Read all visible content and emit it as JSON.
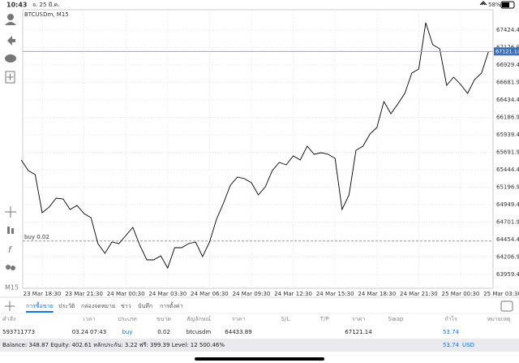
{
  "status_bar": {
    "time": "10:43",
    "date": "จ. 25 มี.ค.",
    "battery": "58%"
  },
  "chart_data": {
    "type": "line",
    "title": "BTCUSDm, M15",
    "color": "#000000",
    "grid": true,
    "categories": [
      null,
      null,
      null,
      "23 Mar 18:30",
      null,
      null,
      null,
      null,
      null,
      "23 Mar 21:30",
      null,
      null,
      null,
      null,
      null,
      "24 Mar 00:30",
      null,
      null,
      null,
      null,
      null,
      "24 Mar 03:30",
      null,
      null,
      null,
      null,
      null,
      "24 Mar 06:30",
      null,
      null,
      null,
      null,
      null,
      "24 Mar 09:30",
      null,
      null,
      null,
      null,
      null,
      "24 Mar 12:30",
      null,
      null,
      null,
      null,
      null,
      "24 Mar 15:30",
      null,
      null,
      null,
      null,
      null,
      "24 Mar 18:30",
      null,
      null,
      null,
      null,
      null,
      "24 Mar 21:30",
      null,
      null,
      null,
      null,
      null,
      "25 Mar 00:30",
      null,
      null,
      null,
      null,
      null,
      "25 Mar 03:30"
    ],
    "values": [
      65582.6,
      65433.0,
      65375.4,
      64834.4,
      64915.0,
      65041.6,
      65030.1,
      64880.5,
      64938.0,
      64822.9,
      64765.4,
      64397.0,
      64258.9,
      64420.0,
      64397.0,
      64512.1,
      64627.2,
      64374.0,
      64166.8,
      64166.8,
      64224.3,
      64051.7,
      64339.5,
      64339.5,
      64397.0,
      64420.0,
      64212.8,
      64420.0,
      64742.3,
      64972.6,
      65225.8,
      65340.9,
      65317.9,
      65260.3,
      65087.7,
      65202.8,
      65433.0,
      65548.1,
      65513.6,
      65640.2,
      65582.6,
      65778.3,
      65663.2,
      65686.2,
      65663.2,
      65605.7,
      64880.5,
      65087.7,
      65720.8,
      65778.3,
      65951.0,
      66043.1,
      66411.4,
      66238.8,
      66376.9,
      66526.5,
      66814.3,
      66871.9,
      67528.0,
      67217.2,
      67159.6,
      66641.7,
      66756.8,
      66653.2,
      66526.5,
      66722.2,
      66814.3,
      67121.1,
      null,
      null
    ],
    "ylim": [
      63763.8,
      67712.2
    ],
    "yticks": [
      {
        "value": 63959.4,
        "label": "63959.40"
      },
      {
        "value": 64206.9,
        "label": "64206.90"
      },
      {
        "value": 64454.4,
        "label": "64454.40"
      },
      {
        "value": 64701.9,
        "label": "64701.90"
      },
      {
        "value": 64949.4,
        "label": "64949.40"
      },
      {
        "value": 65196.9,
        "label": "65196.90"
      },
      {
        "value": 65444.4,
        "label": "65444.40"
      },
      {
        "value": 65691.9,
        "label": "65691.90"
      },
      {
        "value": 65939.4,
        "label": "65939.40"
      },
      {
        "value": 66186.9,
        "label": "66186.90"
      },
      {
        "value": 66434.4,
        "label": "66434.40"
      },
      {
        "value": 66681.9,
        "label": "66681.90"
      },
      {
        "value": 66929.4,
        "label": "66929.40"
      },
      {
        "value": 67176.9,
        "label": "67176.90"
      },
      {
        "value": 67424.4,
        "label": "67424.40"
      }
    ],
    "current_price": 67121.14,
    "order_line": {
      "label": "buy 0.02",
      "value": 64433.89
    },
    "timeframe": "M15"
  },
  "tabs": [
    "การซื้อขาย",
    "ประวัติ",
    "กล่องจดหมาย",
    "ข่าว",
    "บันทึก",
    "การตั้งค่า"
  ],
  "active_tab": 0,
  "table": {
    "header": [
      "คำสั่ง",
      "เวลา",
      "ประเภท",
      "ขนาด",
      "สัญลักษณ์",
      "ราคา",
      "S/L",
      "T/P",
      "ราคา",
      "Swap",
      "กำไร",
      "หมายเหตุ"
    ],
    "rows": [
      [
        "593711773",
        "03.24 07:43",
        "buy",
        "0.02",
        "btcusdm",
        "64433.89",
        null,
        null,
        "67121.14",
        null,
        "53.74",
        null
      ]
    ]
  },
  "footer": {
    "summary": "Balance: 348.87 Equity: 402.61 หลักประกัน: 3.22 ฟรี: 399.39 Level: 12 500.46%",
    "profit": "53.74",
    "currency": "USD"
  }
}
